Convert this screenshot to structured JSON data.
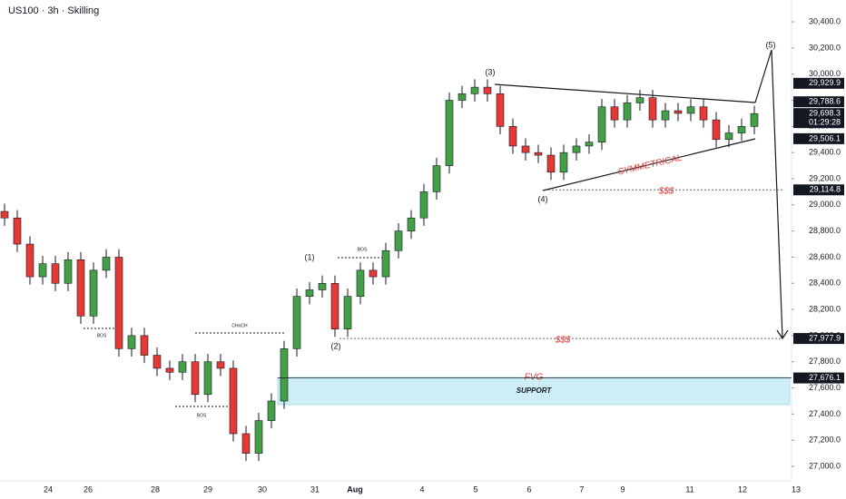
{
  "chart_data": {
    "type": "candlestick",
    "title": "US100 · 3h · Skilling",
    "candles": {
      "open": [
        28950,
        28900,
        28700,
        28450,
        28550,
        28400,
        28580,
        28150,
        28500,
        28600,
        27900,
        28000,
        27850,
        27750,
        27720,
        27800,
        27550,
        27800,
        27750,
        27250,
        27100,
        27350,
        27500,
        27900,
        28300,
        28350,
        28400,
        28050,
        28300,
        28500,
        28450,
        28650,
        28800,
        28900,
        29100,
        29300,
        29800,
        29850,
        29900,
        29850,
        29600,
        29450,
        29400,
        29380,
        29250,
        29400,
        29450,
        29480,
        29750,
        29650,
        29780,
        29820,
        29650,
        29720,
        29700,
        29750,
        29650,
        29500,
        29550,
        29600
      ],
      "high": [
        29010,
        28960,
        28760,
        28610,
        28610,
        28640,
        28640,
        28560,
        28660,
        28660,
        28060,
        28060,
        27910,
        27810,
        27860,
        27860,
        27860,
        27860,
        27810,
        27310,
        27410,
        27560,
        27960,
        28360,
        28410,
        28460,
        28460,
        28360,
        28560,
        28560,
        28710,
        28860,
        28960,
        29160,
        29360,
        29860,
        29910,
        29960,
        29960,
        29910,
        29660,
        29510,
        29460,
        29440,
        29460,
        29510,
        29540,
        29810,
        29810,
        29840,
        29880,
        29880,
        29780,
        29780,
        29810,
        29810,
        29710,
        29610,
        29660,
        29758
      ],
      "low": [
        28840,
        28640,
        28390,
        28390,
        28340,
        28340,
        28090,
        28090,
        28440,
        27840,
        27840,
        27790,
        27690,
        27660,
        27660,
        27490,
        27490,
        27690,
        27190,
        27040,
        27040,
        27290,
        27440,
        27840,
        28240,
        28290,
        27990,
        27990,
        28240,
        28390,
        28390,
        28590,
        28740,
        28840,
        29040,
        29240,
        29740,
        29790,
        29790,
        29540,
        29390,
        29340,
        29320,
        29190,
        29190,
        29340,
        29390,
        29420,
        29590,
        29590,
        29720,
        29590,
        29590,
        29640,
        29640,
        29590,
        29440,
        29440,
        29490,
        29540
      ],
      "close": [
        28900,
        28700,
        28450,
        28550,
        28400,
        28580,
        28150,
        28500,
        28600,
        27900,
        28000,
        27850,
        27750,
        27720,
        27800,
        27550,
        27800,
        27750,
        27250,
        27100,
        27350,
        27500,
        27900,
        28300,
        28350,
        28400,
        28050,
        28300,
        28500,
        28450,
        28650,
        28800,
        28900,
        29100,
        29300,
        29800,
        29850,
        29900,
        29850,
        29600,
        29450,
        29400,
        29380,
        29250,
        29400,
        29450,
        29480,
        29750,
        29650,
        29780,
        29820,
        29650,
        29720,
        29700,
        29750,
        29650,
        29500,
        29550,
        29600,
        29698
      ]
    },
    "up_color": "#43a047",
    "down_color": "#e53935",
    "ylim": [
      26903,
      30567
    ],
    "yticks": [
      {
        "value": 27000,
        "label": "27,000.0"
      },
      {
        "value": 27200,
        "label": "27,200.0"
      },
      {
        "value": 27400,
        "label": "27,400.0"
      },
      {
        "value": 27600,
        "label": "27,600.0"
      },
      {
        "value": 27800,
        "label": "27,800.0"
      },
      {
        "value": 28000,
        "label": "28,000.0"
      },
      {
        "value": 28200,
        "label": "28,200.0"
      },
      {
        "value": 28400,
        "label": "28,400.0"
      },
      {
        "value": 28600,
        "label": "28,600.0"
      },
      {
        "value": 28800,
        "label": "28,800.0"
      },
      {
        "value": 29000,
        "label": "29,000.0"
      },
      {
        "value": 29200,
        "label": "29,200.0"
      },
      {
        "value": 29400,
        "label": "29,400.0"
      },
      {
        "value": 29600,
        "label": "29,600.0"
      },
      {
        "value": 29800,
        "label": "29,800.0"
      },
      {
        "value": 30000,
        "label": "30,000.0"
      },
      {
        "value": 30200,
        "label": "30,200.0"
      },
      {
        "value": 30400,
        "label": "30,400.0"
      }
    ],
    "xticks": [
      "24",
      "26",
      "28",
      "29",
      "30",
      "31",
      "Aug",
      "4",
      "5",
      "6",
      "7",
      "9",
      "11",
      "12",
      "13"
    ],
    "price_tags": [
      {
        "value": 29929.9,
        "label": "29,929.9"
      },
      {
        "value": 29788.6,
        "label": "29,788.6"
      },
      {
        "value": 29698.3,
        "label": "29,698.3",
        "timer": "01:29:28"
      },
      {
        "value": 29506.1,
        "label": "29,506.1"
      },
      {
        "value": 29114.8,
        "label": "29,114.8"
      },
      {
        "value": 27977.9,
        "label": "27,977.9"
      },
      {
        "value": 27676.1,
        "label": "27,676.1"
      }
    ],
    "annotations": {
      "wave1": "(1)",
      "wave2": "(2)",
      "wave3": "(3)",
      "wave4": "(4)",
      "wave5": "(5)",
      "bos1": "BOS",
      "bos2": "BOS",
      "bos3": "BOS",
      "choch": "CHoCH",
      "pattern": "SYMMETRICAL",
      "liq1": "$$$",
      "liq2": "$$$",
      "fvg": "FVG",
      "support": "SUPPORT"
    }
  }
}
